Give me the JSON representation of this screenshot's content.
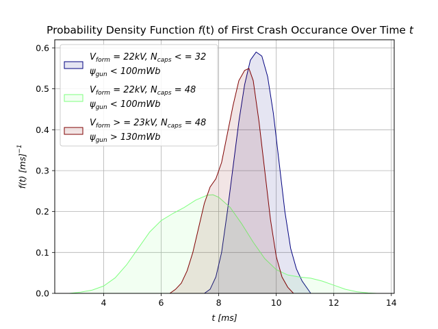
{
  "chart_data": {
    "type": "area",
    "title": {
      "prefix": "Probability Density Function ",
      "fn": "f",
      "arg": "(t)",
      "suffix": " of First Crash Occurance Over Time ",
      "var": "t"
    },
    "xlabel": {
      "var": "t",
      "unit": " [ms]"
    },
    "ylabel": {
      "fn": "f",
      "arg": "(t) [ms]",
      "exp": "−1"
    },
    "xlim": [
      2.3,
      14.1
    ],
    "ylim": [
      0,
      0.62
    ],
    "xticks": [
      4,
      6,
      8,
      10,
      12,
      14
    ],
    "yticks": [
      0.0,
      0.1,
      0.2,
      0.3,
      0.4,
      0.5,
      0.6
    ],
    "grid": true,
    "legend_position": "top-left",
    "series": [
      {
        "legend": {
          "line1": [
            {
              "t": "V",
              "s": "form",
              "math": true
            },
            {
              "t": " = 22kV, ",
              "math": true
            },
            {
              "t": "N",
              "s": "caps",
              "math": true
            },
            {
              "t": " < = 32",
              "math": true
            }
          ],
          "line2": [
            {
              "t": "ψ",
              "s": "gun",
              "math": true
            },
            {
              "t": " < 100mWb",
              "math": true
            }
          ]
        },
        "stroke": "#00007f",
        "fill": "#00007f",
        "fill_opacity": 0.1,
        "x": [
          7.5,
          7.7,
          7.9,
          8.1,
          8.3,
          8.5,
          8.7,
          8.9,
          9.1,
          9.3,
          9.5,
          9.7,
          9.9,
          10.1,
          10.3,
          10.5,
          10.7,
          10.9,
          11.05,
          11.2
        ],
        "y": [
          0.0,
          0.01,
          0.04,
          0.1,
          0.2,
          0.31,
          0.42,
          0.51,
          0.57,
          0.59,
          0.58,
          0.53,
          0.44,
          0.32,
          0.2,
          0.11,
          0.06,
          0.03,
          0.015,
          0.0
        ]
      },
      {
        "legend": {
          "line1": [
            {
              "t": "V",
              "s": "form",
              "math": true
            },
            {
              "t": " = 22kV, ",
              "math": true
            },
            {
              "t": "N",
              "s": "caps",
              "math": true
            },
            {
              "t": " = 48",
              "math": true
            }
          ],
          "line2": [
            {
              "t": "ψ",
              "s": "gun",
              "math": true
            },
            {
              "t": " < 100mWb",
              "math": true
            }
          ]
        },
        "stroke": "#7fff7f",
        "fill": "#7fff7f",
        "fill_opacity": 0.1,
        "x": [
          2.8,
          3.2,
          3.6,
          4.0,
          4.4,
          4.8,
          5.2,
          5.6,
          6.0,
          6.4,
          6.8,
          7.2,
          7.6,
          7.8,
          8.0,
          8.4,
          8.8,
          9.2,
          9.6,
          10.0,
          10.4,
          10.8,
          11.2,
          11.6,
          12.0,
          12.4,
          12.8,
          13.2,
          13.5
        ],
        "y": [
          0.0,
          0.003,
          0.008,
          0.018,
          0.038,
          0.07,
          0.11,
          0.15,
          0.178,
          0.195,
          0.21,
          0.228,
          0.24,
          0.241,
          0.235,
          0.21,
          0.17,
          0.125,
          0.085,
          0.058,
          0.045,
          0.04,
          0.037,
          0.03,
          0.02,
          0.01,
          0.004,
          0.001,
          0.0
        ]
      },
      {
        "legend": {
          "line1": [
            {
              "t": "V",
              "s": "form",
              "math": true
            },
            {
              "t": " > = 23kV, ",
              "math": true
            },
            {
              "t": "N",
              "s": "caps",
              "math": true
            },
            {
              "t": " = 48",
              "math": true
            }
          ],
          "line2": [
            {
              "t": "ψ",
              "s": "gun",
              "math": true
            },
            {
              "t": " > 130mWb",
              "math": true
            }
          ]
        },
        "stroke": "#7f0000",
        "fill": "#7f0000",
        "fill_opacity": 0.1,
        "x": [
          6.3,
          6.5,
          6.7,
          6.9,
          7.1,
          7.3,
          7.5,
          7.7,
          7.9,
          8.1,
          8.3,
          8.5,
          8.7,
          8.9,
          9.05,
          9.2,
          9.4,
          9.6,
          9.8,
          10.0,
          10.2,
          10.4,
          10.6
        ],
        "y": [
          0.0,
          0.01,
          0.025,
          0.055,
          0.1,
          0.16,
          0.22,
          0.26,
          0.28,
          0.32,
          0.39,
          0.46,
          0.52,
          0.545,
          0.55,
          0.52,
          0.42,
          0.3,
          0.18,
          0.09,
          0.04,
          0.015,
          0.0
        ]
      }
    ]
  }
}
